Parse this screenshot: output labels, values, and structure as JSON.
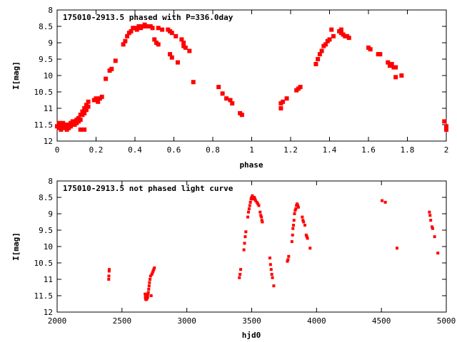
{
  "chart_data": [
    {
      "type": "scatter",
      "title": "175010-2913.5 phased with P=336.0day",
      "xlabel": "phase",
      "ylabel": "I[mag]",
      "xlim": [
        0,
        2
      ],
      "ylim": [
        12,
        8
      ],
      "y_inverted": true,
      "grid": false,
      "marker_color": "#ff0000",
      "xticks": [
        "0",
        "0.2",
        "0.4",
        "0.6",
        "0.8",
        "1",
        "1.2",
        "1.4",
        "1.6",
        "1.8",
        "2"
      ],
      "yticks": [
        "8",
        "8.5",
        "9",
        "9.5",
        "10",
        "10.5",
        "11",
        "11.5",
        "12"
      ],
      "series": [
        {
          "points": [
            [
              0.0,
              11.55
            ],
            [
              0.01,
              11.45
            ],
            [
              0.01,
              11.6
            ],
            [
              0.02,
              11.5
            ],
            [
              0.02,
              11.65
            ],
            [
              0.03,
              11.55
            ],
            [
              0.03,
              11.45
            ],
            [
              0.04,
              11.6
            ],
            [
              0.04,
              11.5
            ],
            [
              0.05,
              11.55
            ],
            [
              0.05,
              11.65
            ],
            [
              0.06,
              11.5
            ],
            [
              0.06,
              11.6
            ],
            [
              0.07,
              11.45
            ],
            [
              0.07,
              11.55
            ],
            [
              0.08,
              11.5
            ],
            [
              0.08,
              11.4
            ],
            [
              0.09,
              11.5
            ],
            [
              0.09,
              11.4
            ],
            [
              0.1,
              11.35
            ],
            [
              0.1,
              11.45
            ],
            [
              0.11,
              11.3
            ],
            [
              0.11,
              11.4
            ],
            [
              0.12,
              11.2
            ],
            [
              0.12,
              11.35
            ],
            [
              0.13,
              11.2
            ],
            [
              0.13,
              11.1
            ],
            [
              0.14,
              11.0
            ],
            [
              0.14,
              11.15
            ],
            [
              0.15,
              10.9
            ],
            [
              0.15,
              11.05
            ],
            [
              0.16,
              10.8
            ],
            [
              0.16,
              10.95
            ],
            [
              0.12,
              11.65
            ],
            [
              0.14,
              11.65
            ],
            [
              0.19,
              10.75
            ],
            [
              0.2,
              10.7
            ],
            [
              0.21,
              10.8
            ],
            [
              0.22,
              10.7
            ],
            [
              0.23,
              10.65
            ],
            [
              0.25,
              10.1
            ],
            [
              0.27,
              9.85
            ],
            [
              0.28,
              9.8
            ],
            [
              0.3,
              9.55
            ],
            [
              0.34,
              9.05
            ],
            [
              0.35,
              8.95
            ],
            [
              0.36,
              8.8
            ],
            [
              0.37,
              8.7
            ],
            [
              0.38,
              8.65
            ],
            [
              0.39,
              8.55
            ],
            [
              0.4,
              8.55
            ],
            [
              0.41,
              8.6
            ],
            [
              0.42,
              8.5
            ],
            [
              0.43,
              8.55
            ],
            [
              0.44,
              8.5
            ],
            [
              0.45,
              8.45
            ],
            [
              0.46,
              8.5
            ],
            [
              0.48,
              8.5
            ],
            [
              0.49,
              8.55
            ],
            [
              0.5,
              8.9
            ],
            [
              0.51,
              9.0
            ],
            [
              0.52,
              9.05
            ],
            [
              0.52,
              8.55
            ],
            [
              0.54,
              8.6
            ],
            [
              0.57,
              8.6
            ],
            [
              0.58,
              8.65
            ],
            [
              0.59,
              8.7
            ],
            [
              0.58,
              9.35
            ],
            [
              0.59,
              9.45
            ],
            [
              0.61,
              8.8
            ],
            [
              0.62,
              9.6
            ],
            [
              0.64,
              8.9
            ],
            [
              0.65,
              9.0
            ],
            [
              0.65,
              9.1
            ],
            [
              0.66,
              9.15
            ],
            [
              0.68,
              9.25
            ],
            [
              0.7,
              10.2
            ],
            [
              0.83,
              10.35
            ],
            [
              0.85,
              10.55
            ],
            [
              0.87,
              10.7
            ],
            [
              0.89,
              10.75
            ],
            [
              0.9,
              10.85
            ],
            [
              0.94,
              11.15
            ],
            [
              0.95,
              11.2
            ],
            [
              1.15,
              10.85
            ],
            [
              1.16,
              10.8
            ],
            [
              1.15,
              11.0
            ],
            [
              1.18,
              10.7
            ],
            [
              1.23,
              10.45
            ],
            [
              1.25,
              10.35
            ],
            [
              1.24,
              10.4
            ],
            [
              1.33,
              9.65
            ],
            [
              1.34,
              9.5
            ],
            [
              1.35,
              9.35
            ],
            [
              1.36,
              9.25
            ],
            [
              1.37,
              9.1
            ],
            [
              1.38,
              9.05
            ],
            [
              1.39,
              8.95
            ],
            [
              1.4,
              8.9
            ],
            [
              1.41,
              8.6
            ],
            [
              1.42,
              8.8
            ],
            [
              1.45,
              8.65
            ],
            [
              1.46,
              8.7
            ],
            [
              1.46,
              8.6
            ],
            [
              1.47,
              8.75
            ],
            [
              1.48,
              8.8
            ],
            [
              1.49,
              8.8
            ],
            [
              1.5,
              8.85
            ],
            [
              1.6,
              9.15
            ],
            [
              1.61,
              9.2
            ],
            [
              1.65,
              9.35
            ],
            [
              1.66,
              9.35
            ],
            [
              1.7,
              9.6
            ],
            [
              1.71,
              9.7
            ],
            [
              1.72,
              9.65
            ],
            [
              1.73,
              9.75
            ],
            [
              1.74,
              9.75
            ],
            [
              1.74,
              10.05
            ],
            [
              1.77,
              10.0
            ],
            [
              1.99,
              11.4
            ],
            [
              2.0,
              11.55
            ],
            [
              2.0,
              11.65
            ]
          ]
        }
      ]
    },
    {
      "type": "scatter",
      "title": "175010-2913.5 not phased light curve",
      "xlabel": "hjd0",
      "ylabel": "I[mag]",
      "xlim": [
        2000,
        5000
      ],
      "ylim": [
        12,
        8
      ],
      "y_inverted": true,
      "grid": false,
      "marker_color": "#ff0000",
      "xticks": [
        "2000",
        "2500",
        "3000",
        "3500",
        "4000",
        "4500",
        "5000"
      ],
      "yticks": [
        "8",
        "8.5",
        "9",
        "9.5",
        "10",
        "10.5",
        "11",
        "11.5",
        "12"
      ],
      "series": [
        {
          "points": [
            [
              2398,
              11.0
            ],
            [
              2399,
              10.9
            ],
            [
              2401,
              10.75
            ],
            [
              2402,
              10.7
            ],
            [
              2678,
              11.45
            ],
            [
              2680,
              11.55
            ],
            [
              2682,
              11.6
            ],
            [
              2684,
              11.5
            ],
            [
              2686,
              11.62
            ],
            [
              2688,
              11.55
            ],
            [
              2690,
              11.58
            ],
            [
              2692,
              11.6
            ],
            [
              2695,
              11.5
            ],
            [
              2698,
              11.55
            ],
            [
              2700,
              11.45
            ],
            [
              2703,
              11.4
            ],
            [
              2706,
              11.3
            ],
            [
              2709,
              11.2
            ],
            [
              2712,
              11.1
            ],
            [
              2716,
              11.0
            ],
            [
              2720,
              10.9
            ],
            [
              2725,
              11.5
            ],
            [
              2730,
              10.85
            ],
            [
              2735,
              10.8
            ],
            [
              2740,
              10.75
            ],
            [
              2745,
              10.7
            ],
            [
              2750,
              10.65
            ],
            [
              3405,
              10.95
            ],
            [
              3410,
              10.85
            ],
            [
              3415,
              10.7
            ],
            [
              3440,
              10.1
            ],
            [
              3445,
              9.9
            ],
            [
              3450,
              9.7
            ],
            [
              3455,
              9.55
            ],
            [
              3470,
              9.1
            ],
            [
              3475,
              8.95
            ],
            [
              3480,
              8.85
            ],
            [
              3485,
              8.75
            ],
            [
              3490,
              8.65
            ],
            [
              3495,
              8.55
            ],
            [
              3500,
              8.5
            ],
            [
              3505,
              8.45
            ],
            [
              3510,
              8.5
            ],
            [
              3515,
              8.55
            ],
            [
              3520,
              8.5
            ],
            [
              3525,
              8.55
            ],
            [
              3530,
              8.6
            ],
            [
              3540,
              8.65
            ],
            [
              3548,
              8.7
            ],
            [
              3555,
              8.75
            ],
            [
              3565,
              8.95
            ],
            [
              3570,
              9.05
            ],
            [
              3575,
              9.1
            ],
            [
              3578,
              9.2
            ],
            [
              3582,
              9.25
            ],
            [
              3640,
              10.35
            ],
            [
              3645,
              10.55
            ],
            [
              3650,
              10.7
            ],
            [
              3655,
              10.85
            ],
            [
              3660,
              10.95
            ],
            [
              3670,
              11.2
            ],
            [
              3775,
              10.45
            ],
            [
              3780,
              10.4
            ],
            [
              3785,
              10.3
            ],
            [
              3810,
              9.85
            ],
            [
              3815,
              9.65
            ],
            [
              3818,
              9.45
            ],
            [
              3822,
              9.35
            ],
            [
              3826,
              9.2
            ],
            [
              3830,
              9.0
            ],
            [
              3835,
              8.9
            ],
            [
              3840,
              8.85
            ],
            [
              3845,
              8.75
            ],
            [
              3850,
              8.7
            ],
            [
              3855,
              8.75
            ],
            [
              3860,
              8.8
            ],
            [
              3890,
              9.1
            ],
            [
              3895,
              9.2
            ],
            [
              3900,
              9.25
            ],
            [
              3910,
              9.35
            ],
            [
              3920,
              9.65
            ],
            [
              3925,
              9.7
            ],
            [
              3930,
              9.75
            ],
            [
              3950,
              10.05
            ],
            [
              4505,
              8.6
            ],
            [
              4530,
              8.65
            ],
            [
              4620,
              10.05
            ],
            [
              4870,
              8.95
            ],
            [
              4875,
              9.05
            ],
            [
              4880,
              9.2
            ],
            [
              4890,
              9.4
            ],
            [
              4895,
              9.45
            ],
            [
              4910,
              9.7
            ],
            [
              4935,
              10.2
            ]
          ]
        }
      ]
    }
  ]
}
